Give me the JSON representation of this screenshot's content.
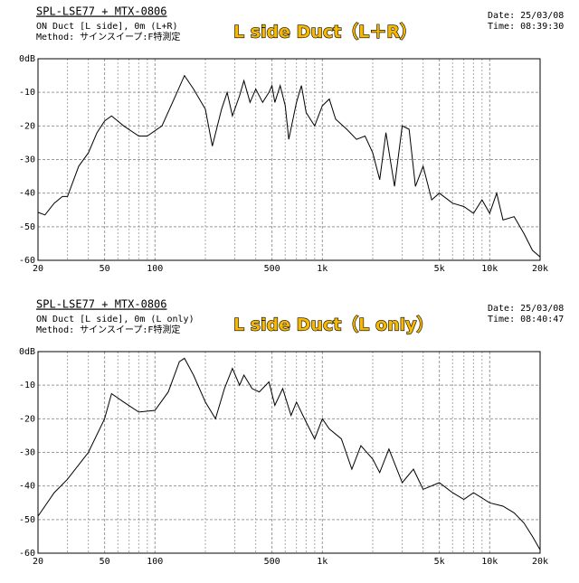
{
  "chart_data": [
    {
      "type": "line",
      "log_x": true,
      "color": "#000000",
      "title": "SPL-LSE77 + MTX-0806",
      "subtitle": [
        "ON Duct [L side], 0m (L+R)",
        "Method: サインスイープ:F特測定"
      ],
      "annotation": "L side Duct（L＋R）",
      "date": "Date: 25/03/08",
      "time": "Time: 08:39:30",
      "xlim": [
        20,
        20000
      ],
      "ylim": [
        -60,
        0
      ],
      "xticks": [
        20,
        50,
        100,
        500,
        {
          "value": 1000,
          "label": "1k"
        },
        {
          "value": 5000,
          "label": "5k"
        },
        {
          "value": 10000,
          "label": "10k"
        },
        {
          "value": 20000,
          "label": "20k"
        }
      ],
      "xgrid": [
        30,
        40,
        60,
        70,
        80,
        90,
        200,
        300,
        400,
        600,
        700,
        800,
        900,
        2000,
        3000,
        4000,
        6000,
        7000,
        8000,
        9000
      ],
      "yticks": [
        {
          "value": 0,
          "label": "0dB"
        },
        -10,
        -20,
        -30,
        -40,
        -50,
        -60
      ],
      "grid": true,
      "x": [
        20,
        22,
        25,
        28,
        30,
        35,
        40,
        45,
        50,
        55,
        65,
        80,
        90,
        110,
        130,
        150,
        170,
        200,
        220,
        250,
        270,
        290,
        320,
        340,
        370,
        400,
        440,
        480,
        500,
        520,
        560,
        600,
        630,
        700,
        750,
        800,
        900,
        1000,
        1100,
        1200,
        1400,
        1600,
        1800,
        2000,
        2200,
        2400,
        2700,
        3000,
        3300,
        3600,
        4000,
        4500,
        5000,
        6000,
        7000,
        8000,
        9000,
        10000,
        11000,
        12000,
        14000,
        16000,
        18000,
        20000
      ],
      "values": [
        -45.7,
        -46.5,
        -43,
        -41,
        -41,
        -32,
        -28,
        -22,
        -18.5,
        -17,
        -20,
        -23,
        -23,
        -20,
        -12,
        -5,
        -9,
        -15,
        -26,
        -15,
        -10,
        -17,
        -11,
        -6.5,
        -13,
        -9,
        -13,
        -10,
        -8,
        -13,
        -8,
        -14,
        -24,
        -13,
        -8,
        -16,
        -20,
        -14,
        -12,
        -18,
        -21,
        -24,
        -23,
        -28,
        -36,
        -22,
        -38,
        -20,
        -21,
        -38,
        -32,
        -42,
        -40,
        -43,
        -44,
        -46,
        -42,
        -46,
        -40,
        -48,
        -47,
        -52,
        -57,
        -59
      ]
    },
    {
      "type": "line",
      "log_x": true,
      "color": "#000000",
      "title": "SPL-LSE77 + MTX-0806",
      "subtitle": [
        "ON Duct [L side], 0m (L only)",
        "Method: サインスイープ:F特測定"
      ],
      "annotation": "L side Duct（L only）",
      "date": "Date: 25/03/08",
      "time": "Time: 08:40:47",
      "xlim": [
        20,
        20000
      ],
      "ylim": [
        -60,
        0
      ],
      "xticks": [
        20,
        50,
        100,
        500,
        {
          "value": 1000,
          "label": "1k"
        },
        {
          "value": 5000,
          "label": "5k"
        },
        {
          "value": 10000,
          "label": "10k"
        },
        {
          "value": 20000,
          "label": "20k"
        }
      ],
      "xgrid": [
        30,
        40,
        60,
        70,
        80,
        90,
        200,
        300,
        400,
        600,
        700,
        800,
        900,
        2000,
        3000,
        4000,
        6000,
        7000,
        8000,
        9000
      ],
      "yticks": [
        {
          "value": 0,
          "label": "0dB"
        },
        -10,
        -20,
        -30,
        -40,
        -50,
        -60
      ],
      "grid": true,
      "x": [
        20,
        25,
        30,
        40,
        50,
        55,
        65,
        80,
        100,
        120,
        140,
        150,
        170,
        200,
        230,
        260,
        290,
        320,
        340,
        380,
        420,
        480,
        520,
        580,
        650,
        700,
        800,
        900,
        1000,
        1100,
        1300,
        1500,
        1700,
        2000,
        2200,
        2500,
        3000,
        3500,
        4000,
        5000,
        6000,
        7000,
        8000,
        10000,
        12000,
        14000,
        16000,
        18000,
        20000
      ],
      "values": [
        -49,
        -42,
        -38,
        -30,
        -20,
        -12.5,
        -15,
        -18,
        -17.5,
        -12,
        -3,
        -2,
        -7,
        -15,
        -20,
        -11,
        -5,
        -10,
        -7,
        -11,
        -12,
        -9,
        -16,
        -11,
        -19,
        -15,
        -21,
        -26,
        -20,
        -23,
        -26,
        -35,
        -28,
        -32,
        -36,
        -29,
        -39,
        -35,
        -41,
        -39,
        -42,
        -44,
        -42,
        -45,
        -46,
        -48,
        -51,
        -55,
        -59
      ]
    }
  ]
}
